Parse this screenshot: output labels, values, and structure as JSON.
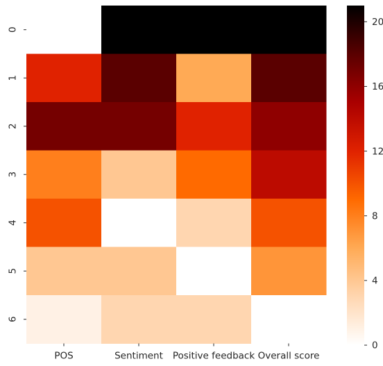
{
  "chart_data": {
    "type": "heatmap",
    "title": "",
    "xlabel": "",
    "ylabel": "",
    "x_categories": [
      "POS",
      "Sentiment",
      "Positive feedback",
      "Overall score"
    ],
    "y_categories": [
      "0",
      "1",
      "2",
      "3",
      "4",
      "5",
      "6"
    ],
    "values": [
      [
        0,
        21,
        21,
        21
      ],
      [
        12,
        18,
        6,
        18
      ],
      [
        17,
        17,
        12,
        16
      ],
      [
        8,
        4,
        9,
        14
      ],
      [
        10,
        0,
        3,
        10
      ],
      [
        4,
        4,
        0,
        7
      ],
      [
        1,
        3,
        3,
        0
      ]
    ],
    "colorbar": {
      "min": 0,
      "max": 21,
      "ticks": [
        0,
        4,
        8,
        12,
        16,
        20
      ],
      "tick_labels": [
        "0",
        "4",
        "8",
        "12",
        "16",
        "20"
      ]
    },
    "colormap": "gist_heat_r",
    "colormap_stops": [
      "#ffffff",
      "#ffd6b0",
      "#ffaa55",
      "#ff6a00",
      "#e02200",
      "#aa0000",
      "#5a0000",
      "#000000"
    ]
  }
}
